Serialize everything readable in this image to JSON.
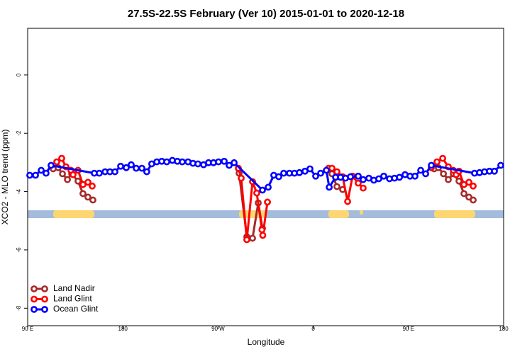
{
  "chart_data": {
    "type": "line",
    "title": "27.5S-22.5S February (Ver 10)   2015-01-01 to 2020-12-18",
    "x_label": "Longitude",
    "y_label": "XCO2 - MLO trend (ppm)",
    "xlim": [
      90,
      540
    ],
    "ylim": [
      -8.6,
      1.6
    ],
    "xticks": [
      {
        "value": 90,
        "label": "90 E"
      },
      180,
      {
        "value": 270,
        "label": "90 W"
      },
      {
        "value": 360,
        "label": "0"
      },
      {
        "value": 450,
        "label": "90 E"
      },
      {
        "value": 540,
        "label": "180"
      }
    ],
    "yticks": [
      0,
      -2,
      -4,
      -6,
      -8
    ],
    "legend": "bottom-left",
    "series": [
      {
        "name": "Land Nadir",
        "color": "#a52a2a",
        "x": [
          114.1,
          118.8,
          122.9,
          127.6,
          131.6,
          137.6,
          142.3,
          147.0,
          151.7,
          null,
          289.9,
          297.2,
          302.6,
          308.0,
          312.0,
          null,
          377.7,
          382.4,
          387.8,
          null,
          474.3,
          478.3,
          483.1,
          487.7,
          492.4,
          497.8,
          502.5,
          507.2,
          511.2
        ],
        "values": [
          -3.22,
          -3.18,
          -3.39,
          -3.59,
          -3.39,
          -3.64,
          -4.07,
          -4.19,
          -4.29,
          null,
          -3.37,
          -5.55,
          -5.6,
          -4.39,
          -5.26,
          null,
          -3.39,
          -3.83,
          -3.93,
          null,
          -3.22,
          -3.18,
          -3.39,
          -3.59,
          -3.39,
          -3.64,
          -4.07,
          -4.19,
          -4.29
        ]
      },
      {
        "name": "Land Glint",
        "color": "#ff0000",
        "x": [
          117.5,
          122.2,
          126.2,
          130.9,
          132.9,
          137.6,
          142.3,
          147.0,
          151.0,
          null,
          289.2,
          291.9,
          297.2,
          302.6,
          306.6,
          311.5,
          312.3,
          316.7,
          null,
          374.4,
          377.7,
          382.4,
          387.8,
          392.5,
          397.2,
          402.5,
          407.2,
          null,
          471.6,
          477.0,
          482.4,
          487.7,
          492.4,
          495.1,
          497.8,
          502.5,
          507.2,
          511.2
        ],
        "values": [
          -2.98,
          -2.86,
          -3.15,
          -3.27,
          -3.42,
          -3.27,
          -3.76,
          -3.68,
          -3.81,
          null,
          -3.2,
          -3.54,
          -5.65,
          -3.66,
          -4.05,
          -5.31,
          -5.5,
          -4.36,
          null,
          -3.2,
          -3.2,
          -3.32,
          -3.49,
          -4.34,
          -3.47,
          -3.71,
          -3.88,
          null,
          -3.18,
          -2.98,
          -2.86,
          -3.15,
          -3.27,
          -3.42,
          -3.3,
          -3.76,
          -3.68,
          -3.81
        ]
      },
      {
        "name": "Ocean Glint",
        "color": "#0000ff",
        "x": [
          92.0,
          97.4,
          102.8,
          107.4,
          112.1,
          153.0,
          157.7,
          163.2,
          167.8,
          172.5,
          177.9,
          183.2,
          187.9,
          192.6,
          198.0,
          202.6,
          207.3,
          212.1,
          216.8,
          221.5,
          226.8,
          231.5,
          236.2,
          241.6,
          246.3,
          251.0,
          256.3,
          261.0,
          265.7,
          270.4,
          275.8,
          280.5,
          285.2,
          312.0,
          317.4,
          322.7,
          327.4,
          332.1,
          337.5,
          342.2,
          346.9,
          352.2,
          356.9,
          362.3,
          367.0,
          372.4,
          375.1,
          381.1,
          385.8,
          390.5,
          395.2,
          402.5,
          407.2,
          412.6,
          417.3,
          422.0,
          426.7,
          432.1,
          436.8,
          441.5,
          446.8,
          451.5,
          456.2,
          461.6,
          466.3,
          471.6,
          512.5,
          517.2,
          521.9,
          526.6,
          531.3,
          537.3
        ],
        "values": [
          -3.44,
          -3.44,
          -3.27,
          -3.37,
          -3.1,
          -3.37,
          -3.37,
          -3.32,
          -3.32,
          -3.32,
          -3.13,
          -3.18,
          -3.08,
          -3.2,
          -3.2,
          -3.32,
          -3.05,
          -2.98,
          -2.96,
          -2.98,
          -2.93,
          -2.96,
          -2.98,
          -2.98,
          -3.03,
          -3.05,
          -3.08,
          -3.01,
          -3.01,
          -2.98,
          -2.96,
          -3.1,
          -3.01,
          -3.95,
          -3.85,
          -3.44,
          -3.49,
          -3.37,
          -3.37,
          -3.37,
          -3.35,
          -3.3,
          -3.22,
          -3.47,
          -3.37,
          -3.27,
          -3.85,
          -3.51,
          -3.51,
          -3.54,
          -3.49,
          -3.47,
          -3.59,
          -3.54,
          -3.61,
          -3.56,
          -3.47,
          -3.56,
          -3.54,
          -3.51,
          -3.42,
          -3.47,
          -3.47,
          -3.27,
          -3.39,
          -3.1,
          -3.37,
          -3.35,
          -3.32,
          -3.3,
          -3.3,
          -3.1
        ]
      }
    ]
  }
}
